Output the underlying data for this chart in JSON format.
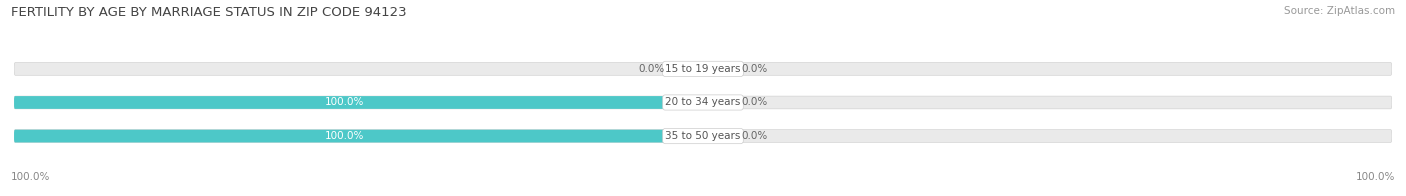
{
  "title": "FERTILITY BY AGE BY MARRIAGE STATUS IN ZIP CODE 94123",
  "source": "Source: ZipAtlas.com",
  "categories": [
    "15 to 19 years",
    "20 to 34 years",
    "35 to 50 years"
  ],
  "married_values": [
    0.0,
    100.0,
    100.0
  ],
  "unmarried_values": [
    0.0,
    0.0,
    0.0
  ],
  "married_color": "#4DC8C8",
  "unmarried_color": "#F5A8BC",
  "bar_bg_color": "#EAEAEA",
  "label_married_left": [
    "0.0%",
    "100.0%",
    "100.0%"
  ],
  "label_unmarried_right": [
    "0.0%",
    "0.0%",
    "0.0%"
  ],
  "x_left_label": "100.0%",
  "x_right_label": "100.0%",
  "title_fontsize": 9.5,
  "source_fontsize": 7.5,
  "label_fontsize": 7.5,
  "cat_fontsize": 7.5,
  "bar_height": 0.38,
  "figsize": [
    14.06,
    1.96
  ],
  "dpi": 100
}
